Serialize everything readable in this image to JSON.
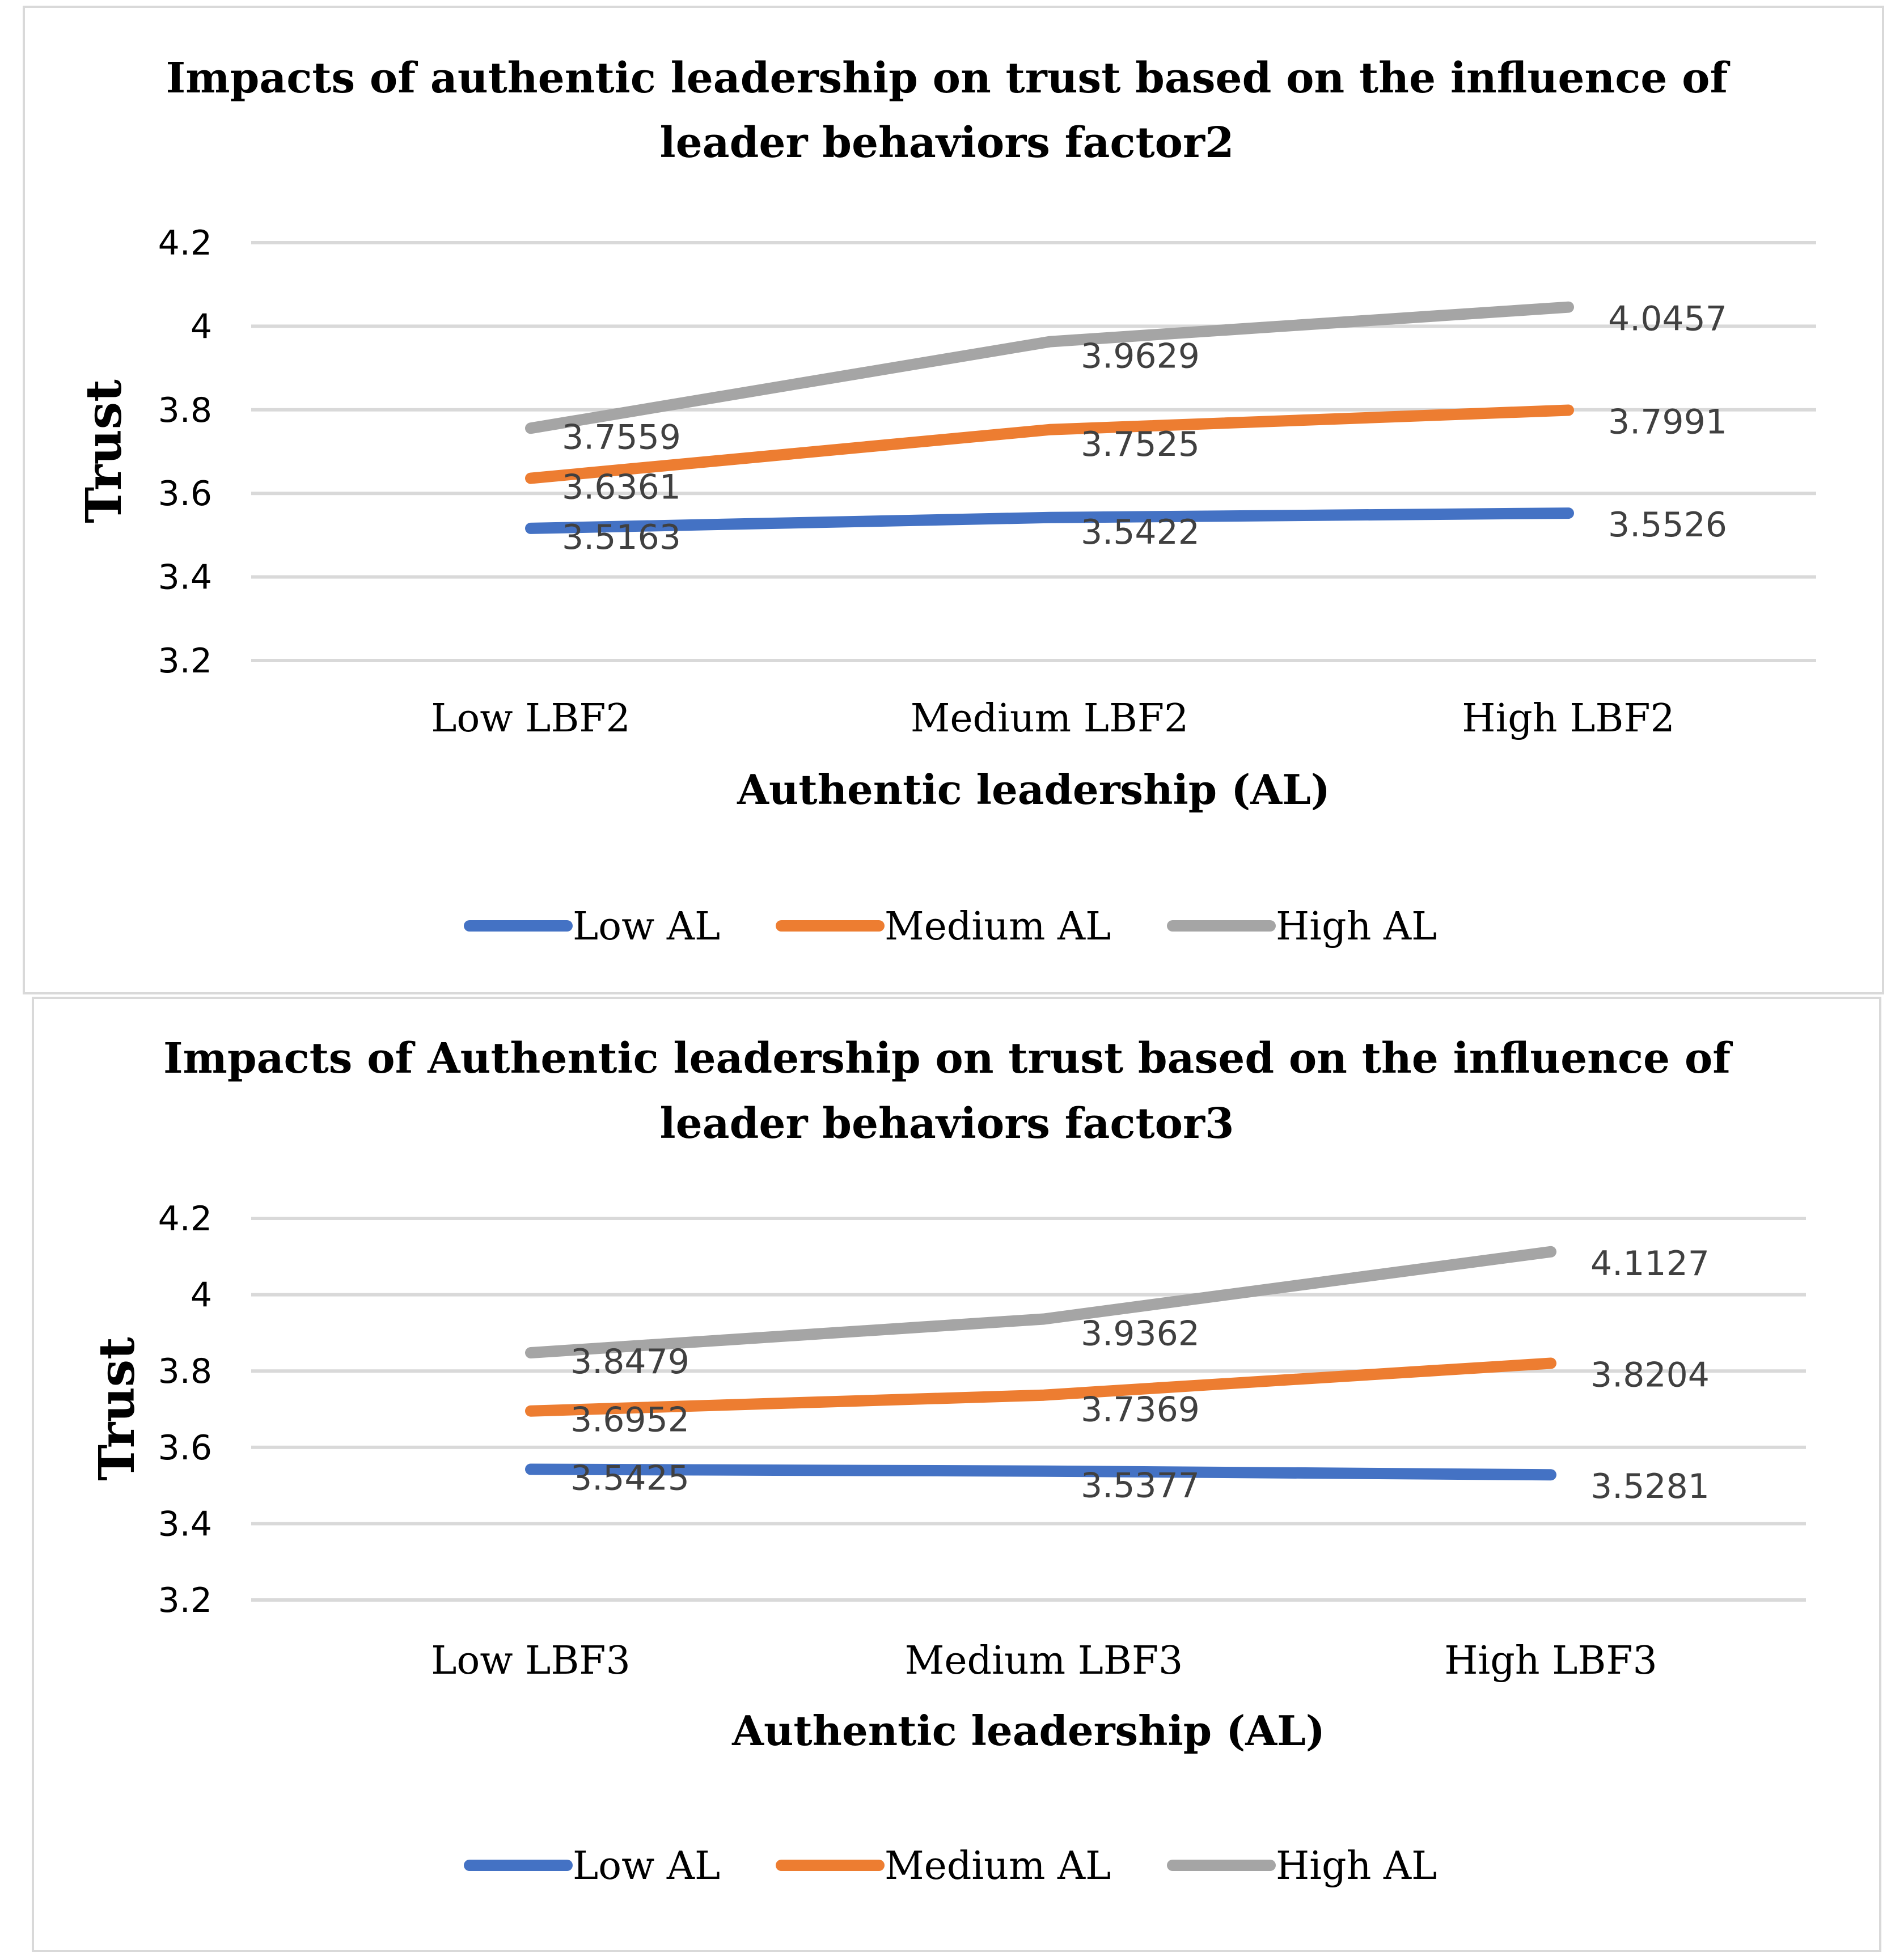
{
  "chart_data": [
    {
      "type": "line",
      "title_lines": [
        "Impacts of authentic leadership on trust based on the influence of",
        "leader behaviors factor2"
      ],
      "xlabel": "Authentic leadership (AL)",
      "ylabel": "Trust",
      "categories": [
        "Low LBF2",
        "Medium LBF2",
        "High LBF2"
      ],
      "yticks": [
        "4.2",
        "4",
        "3.8",
        "3.6",
        "3.4",
        "3.2"
      ],
      "ylim": [
        3.2,
        4.2
      ],
      "grid": true,
      "legend_position": "bottom",
      "series": [
        {
          "name": "Low AL",
          "color": "#4472c4",
          "values": [
            3.5163,
            3.5422,
            3.5526
          ],
          "labels": [
            "3.5163",
            "3.5422",
            "3.5526"
          ]
        },
        {
          "name": "Medium AL",
          "color": "#ed7d31",
          "values": [
            3.6361,
            3.7525,
            3.7991
          ],
          "labels": [
            "3.6361",
            "3.7525",
            "3.7991"
          ]
        },
        {
          "name": "High AL",
          "color": "#a5a5a5",
          "values": [
            3.7559,
            3.9629,
            4.0457
          ],
          "labels": [
            "3.7559",
            "3.9629",
            "4.0457"
          ]
        }
      ]
    },
    {
      "type": "line",
      "title_lines": [
        "Impacts of Authentic leadership on trust based on the influence of",
        "leader behaviors factor3"
      ],
      "xlabel": "Authentic leadership (AL)",
      "ylabel": "Trust",
      "categories": [
        "Low LBF3",
        "Medium LBF3",
        "High LBF3"
      ],
      "yticks": [
        "4.2",
        "4",
        "3.8",
        "3.6",
        "3.4",
        "3.2"
      ],
      "ylim": [
        3.2,
        4.2
      ],
      "grid": true,
      "legend_position": "bottom",
      "series": [
        {
          "name": "Low AL",
          "color": "#4472c4",
          "values": [
            3.5425,
            3.5377,
            3.5281
          ],
          "labels": [
            "3.5425",
            "3.5377",
            "3.5281"
          ]
        },
        {
          "name": "Medium AL",
          "color": "#ed7d31",
          "values": [
            3.6952,
            3.7369,
            3.8204
          ],
          "labels": [
            "3.6952",
            "3.7369",
            "3.8204"
          ]
        },
        {
          "name": "High AL",
          "color": "#a5a5a5",
          "values": [
            3.8479,
            3.9362,
            4.1127
          ],
          "labels": [
            "3.8479",
            "3.9362",
            "4.1127"
          ]
        }
      ]
    }
  ]
}
